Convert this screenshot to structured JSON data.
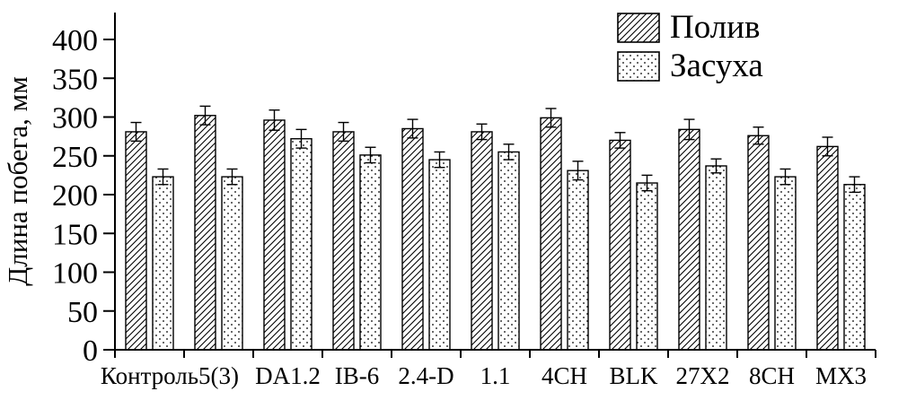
{
  "chart_data": {
    "type": "bar",
    "title": "",
    "xlabel": "",
    "ylabel": "Длина побега, мм",
    "ylim": [
      0,
      400
    ],
    "ytick_step": 50,
    "ytick_labels": [
      "0",
      "50",
      "100",
      "150",
      "200",
      "250",
      "300",
      "350",
      "400"
    ],
    "grid": false,
    "legend_position": "top-right",
    "categories": [
      "Контроль",
      "5(3)",
      "DA1.2",
      "IB-6",
      "2.4-D",
      "1.1",
      "4CH",
      "BLK",
      "27X2",
      "8CH",
      "MX3"
    ],
    "series": [
      {
        "name": "Полив",
        "pattern": "diagonal-hatch",
        "values": [
          281,
          302,
          296,
          281,
          285,
          281,
          299,
          270,
          284,
          276,
          262
        ],
        "errors": [
          12,
          12,
          13,
          12,
          12,
          10,
          12,
          10,
          13,
          11,
          12
        ]
      },
      {
        "name": "Засуха",
        "pattern": "dots",
        "values": [
          223,
          223,
          272,
          251,
          245,
          255,
          231,
          215,
          237,
          223,
          213
        ],
        "errors": [
          10,
          10,
          12,
          10,
          10,
          10,
          12,
          10,
          9,
          10,
          10
        ]
      }
    ]
  },
  "colors": {
    "axis": "#000000",
    "bar_fill": "#ffffff",
    "bar_stroke": "#000000",
    "pattern_ink": "#000000"
  }
}
